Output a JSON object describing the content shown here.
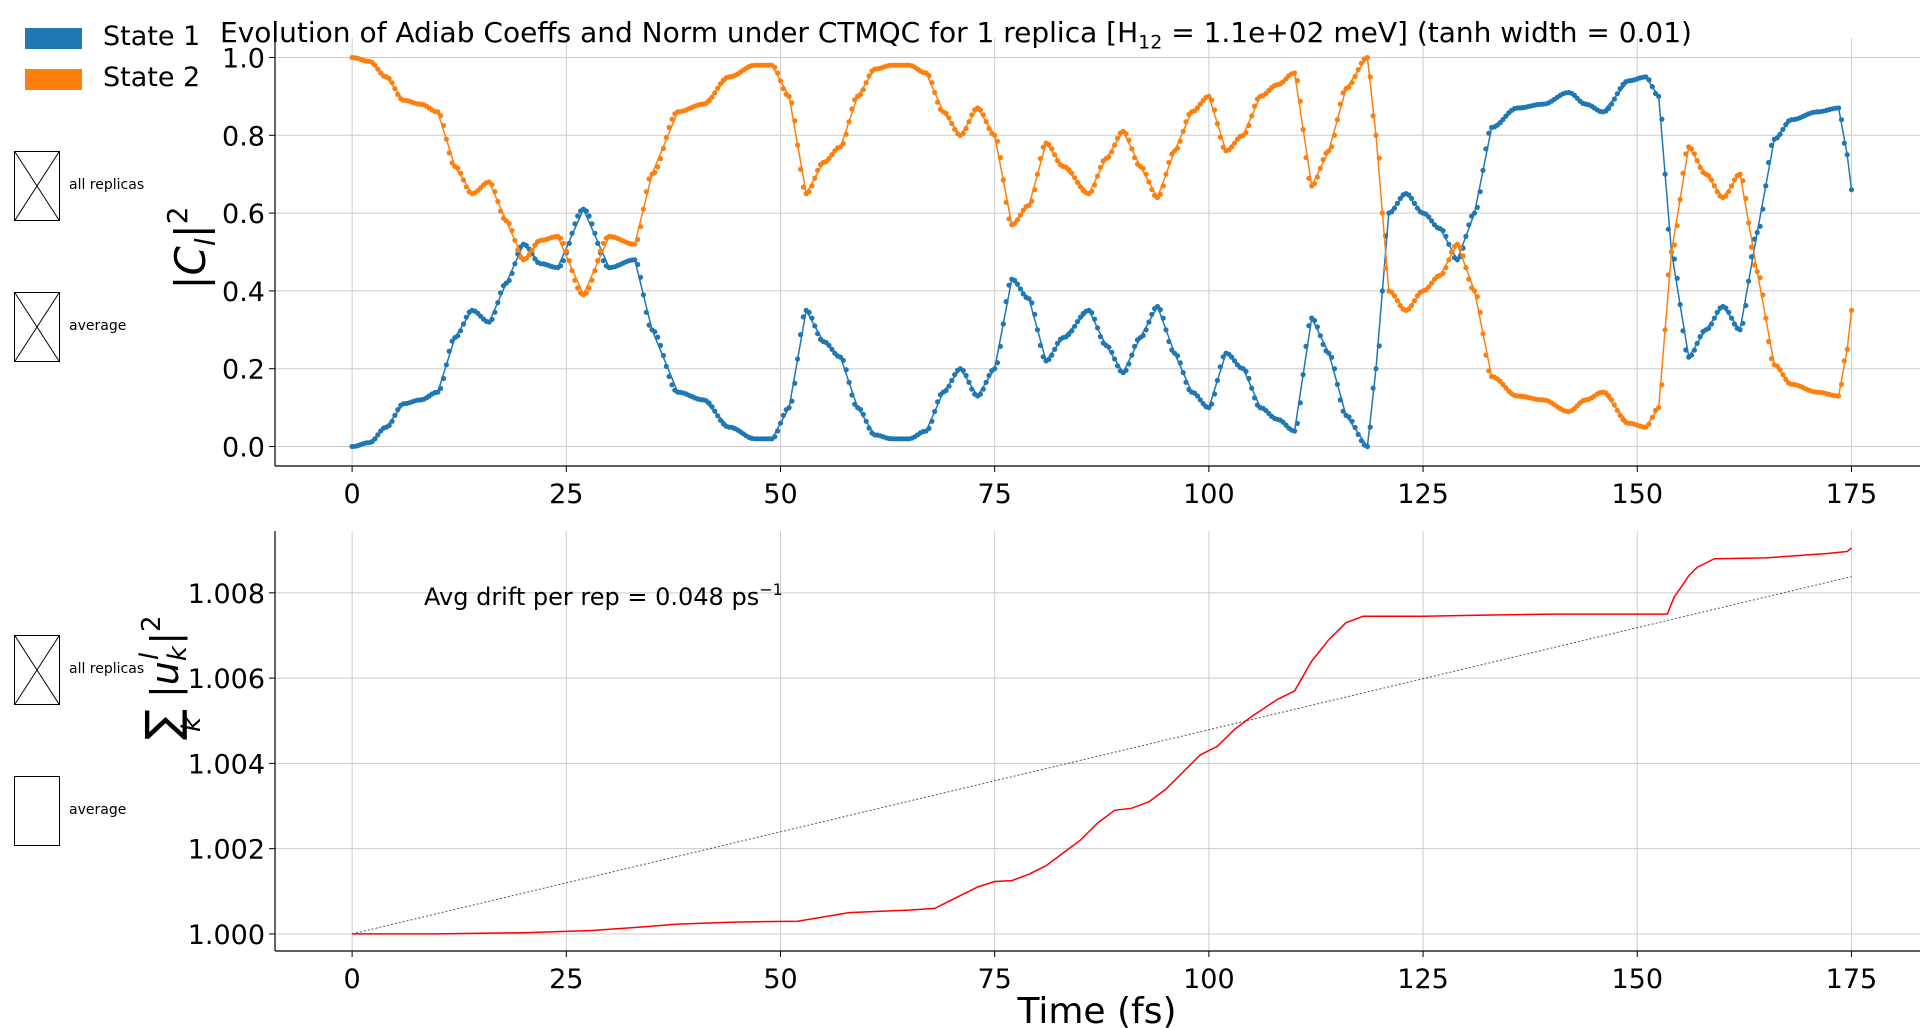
{
  "title": {
    "prefix": "Evolution of Adiab Coeffs and Norm under CTMQC for 1 replica [H",
    "subscript": "12",
    "suffix": " = 1.1e+02 meV]   (tanh width = 0.01)"
  },
  "legend": [
    {
      "label": "State 1",
      "color": "#1f77b4"
    },
    {
      "label": "State 2",
      "color": "#ff7f0e"
    }
  ],
  "side_controls": {
    "top_all": "all replicas",
    "top_avg": "average",
    "bottom_all": "all replicas",
    "bottom_avg": "average"
  },
  "colors": {
    "state1": "#1f77b4",
    "state2": "#ff7f0e",
    "norm": "#ff0000",
    "drift": "#555555",
    "grid": "#cccccc"
  },
  "chart_data": [
    {
      "type": "line",
      "ylabel": "|C_l|^2",
      "xlabel": "",
      "xlim": [
        -9,
        183
      ],
      "ylim": [
        -0.05,
        1.05
      ],
      "xticks": [
        0,
        25,
        50,
        75,
        100,
        125,
        150,
        175
      ],
      "yticks": [
        0.0,
        0.2,
        0.4,
        0.6,
        0.8,
        1.0
      ],
      "ytick_labels": [
        "0.0",
        "0.2",
        "0.4",
        "0.6",
        "0.8",
        "1.0"
      ],
      "grid": true,
      "legend_position": "top-left",
      "markers": true,
      "series": [
        {
          "name": "State 1",
          "color": "#1f77b4",
          "x": [
            0,
            2,
            4,
            6,
            8,
            10,
            12,
            14,
            16,
            18,
            20,
            22,
            24,
            27,
            30,
            33,
            35,
            38,
            41,
            44,
            47,
            49,
            51,
            53,
            55,
            57,
            59,
            61,
            63,
            65,
            67,
            69,
            71,
            73,
            75,
            77,
            79,
            81,
            83,
            86,
            88,
            90,
            92,
            94,
            96,
            98,
            100,
            102,
            104,
            106,
            108,
            110,
            112,
            114,
            116,
            118.5,
            119.5,
            121,
            123,
            125,
            127,
            129,
            131,
            133,
            136,
            139,
            142,
            144,
            146,
            149,
            151,
            152.5,
            154,
            156,
            158,
            160,
            162,
            164,
            166,
            168,
            171,
            173.5,
            174.5,
            175
          ],
          "y": [
            0.0,
            0.01,
            0.05,
            0.11,
            0.12,
            0.14,
            0.28,
            0.35,
            0.32,
            0.42,
            0.52,
            0.47,
            0.46,
            0.61,
            0.46,
            0.48,
            0.3,
            0.14,
            0.12,
            0.05,
            0.02,
            0.02,
            0.1,
            0.35,
            0.27,
            0.23,
            0.1,
            0.03,
            0.02,
            0.02,
            0.04,
            0.14,
            0.2,
            0.13,
            0.2,
            0.43,
            0.38,
            0.22,
            0.28,
            0.35,
            0.26,
            0.19,
            0.28,
            0.36,
            0.24,
            0.14,
            0.1,
            0.24,
            0.2,
            0.1,
            0.07,
            0.04,
            0.33,
            0.24,
            0.08,
            0.0,
            0.2,
            0.6,
            0.65,
            0.6,
            0.56,
            0.48,
            0.6,
            0.82,
            0.87,
            0.88,
            0.91,
            0.88,
            0.86,
            0.94,
            0.95,
            0.9,
            0.5,
            0.23,
            0.3,
            0.36,
            0.3,
            0.55,
            0.79,
            0.84,
            0.86,
            0.87,
            0.75,
            0.66
          ]
        },
        {
          "name": "State 2",
          "color": "#ff7f0e",
          "x": [
            0,
            2,
            4,
            6,
            8,
            10,
            12,
            14,
            16,
            18,
            20,
            22,
            24,
            27,
            30,
            33,
            35,
            38,
            41,
            44,
            47,
            49,
            51,
            53,
            55,
            57,
            59,
            61,
            63,
            65,
            67,
            69,
            71,
            73,
            75,
            77,
            79,
            81,
            83,
            86,
            88,
            90,
            92,
            94,
            96,
            98,
            100,
            102,
            104,
            106,
            108,
            110,
            112,
            114,
            116,
            118.5,
            119.5,
            121,
            123,
            125,
            127,
            129,
            131,
            133,
            136,
            139,
            142,
            144,
            146,
            149,
            151,
            152.5,
            154,
            156,
            158,
            160,
            162,
            164,
            166,
            168,
            171,
            173.5,
            174.5,
            175
          ],
          "y": [
            1.0,
            0.99,
            0.95,
            0.89,
            0.88,
            0.86,
            0.72,
            0.65,
            0.68,
            0.58,
            0.48,
            0.53,
            0.54,
            0.39,
            0.54,
            0.52,
            0.7,
            0.86,
            0.88,
            0.95,
            0.98,
            0.98,
            0.9,
            0.65,
            0.73,
            0.77,
            0.9,
            0.97,
            0.98,
            0.98,
            0.96,
            0.86,
            0.8,
            0.87,
            0.8,
            0.57,
            0.62,
            0.78,
            0.72,
            0.65,
            0.74,
            0.81,
            0.72,
            0.64,
            0.76,
            0.86,
            0.9,
            0.76,
            0.8,
            0.9,
            0.93,
            0.96,
            0.67,
            0.76,
            0.92,
            1.0,
            0.8,
            0.4,
            0.35,
            0.4,
            0.44,
            0.52,
            0.4,
            0.18,
            0.13,
            0.12,
            0.09,
            0.12,
            0.14,
            0.06,
            0.05,
            0.1,
            0.5,
            0.77,
            0.7,
            0.64,
            0.7,
            0.45,
            0.21,
            0.16,
            0.14,
            0.13,
            0.25,
            0.35
          ]
        }
      ]
    },
    {
      "type": "line",
      "ylabel": "Σ_k |u_k^l|^2",
      "xlabel": "Time (fs)",
      "xlim": [
        -9,
        183
      ],
      "ylim": [
        0.9996,
        1.00945
      ],
      "xticks": [
        0,
        25,
        50,
        75,
        100,
        125,
        150,
        175
      ],
      "yticks": [
        1.0,
        1.002,
        1.004,
        1.006,
        1.008
      ],
      "ytick_labels": [
        "1.000",
        "1.002",
        "1.004",
        "1.006",
        "1.008"
      ],
      "grid": true,
      "annotation": {
        "text": "Avg drift per rep = 0.048 ps",
        "superscript": "−1",
        "x": 8.5,
        "y": 1.0078
      },
      "series": [
        {
          "color": "#ff0000",
          "style": "solid",
          "x": [
            0,
            10,
            20,
            28,
            33,
            38,
            45,
            52,
            58,
            65,
            68,
            70,
            73,
            75,
            77,
            79,
            81,
            83,
            85,
            87,
            89,
            91,
            93,
            95,
            97,
            99,
            101,
            103,
            105,
            108,
            110,
            112,
            114,
            116,
            118,
            125,
            133,
            140,
            153.5,
            154.3,
            155,
            156,
            157,
            158,
            159,
            165,
            172,
            174.5,
            175
          ],
          "y": [
            1.0,
            1.0,
            1.00003,
            1.00008,
            1.00015,
            1.00023,
            1.00028,
            1.0003,
            1.0005,
            1.00056,
            1.0006,
            1.0008,
            1.0011,
            1.00123,
            1.00125,
            1.0014,
            1.0016,
            1.0019,
            1.0022,
            1.0026,
            1.0029,
            1.00295,
            1.0031,
            1.0034,
            1.0038,
            1.0042,
            1.0044,
            1.0048,
            1.0051,
            1.0055,
            1.0057,
            1.0064,
            1.0069,
            1.0073,
            1.00745,
            1.00745,
            1.00748,
            1.0075,
            1.0075,
            1.0079,
            1.0081,
            1.0084,
            1.0086,
            1.0087,
            1.0088,
            1.00882,
            1.00892,
            1.00897,
            1.00905
          ]
        },
        {
          "color": "#555555",
          "style": "dotted",
          "x": [
            0,
            175
          ],
          "y": [
            1.0,
            1.00838
          ]
        }
      ]
    }
  ]
}
